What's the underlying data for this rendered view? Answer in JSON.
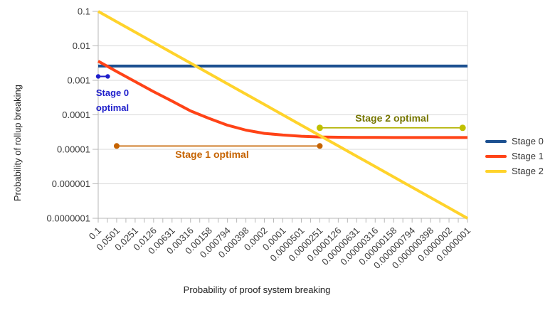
{
  "chart_data": {
    "type": "line",
    "title": "",
    "xlabel": "Probability of proof system breaking",
    "ylabel": "Probability of rollup breaking",
    "x_scale": "log",
    "y_scale": "log",
    "x_range": [
      0.1,
      1e-07
    ],
    "y_range": [
      0.1,
      1e-07
    ],
    "grid": "horizontal-only",
    "legend_position": "right",
    "x_values": [
      0.1,
      0.0501,
      0.0251,
      0.0126,
      0.00631,
      0.00316,
      0.00158,
      0.000794,
      0.000398,
      0.0002,
      0.0001,
      5.01e-05,
      2.51e-05,
      1.26e-05,
      6.31e-06,
      3.16e-06,
      1.58e-06,
      7.94e-07,
      3.98e-07,
      2e-07,
      1e-07
    ],
    "x_tick_labels": [
      "0.1",
      "0.0501",
      "0.0251",
      "0.0126",
      "0.00631",
      "0.00316",
      "0.00158",
      "0.000794",
      "0.000398",
      "0.0002",
      "0.0001",
      "0.0000501",
      "0.0000251",
      "0.0000126",
      "0.00000631",
      "0.00000316",
      "0.00000158",
      "0.000000794",
      "0.000000398",
      "0.0000002",
      "0.0000001"
    ],
    "y_tick_labels": [
      "0.1",
      "0.01",
      "0.001",
      "0.0001",
      "0.00001",
      "0.000001",
      "0.0000001"
    ],
    "series": [
      {
        "name": "Stage 0",
        "color": "#1c5090",
        "values": [
          0.0026,
          0.0026,
          0.0026,
          0.0026,
          0.0026,
          0.0026,
          0.0026,
          0.0026,
          0.0026,
          0.0026,
          0.0026,
          0.0026,
          0.0026,
          0.0026,
          0.0026,
          0.0026,
          0.0026,
          0.0026,
          0.0026,
          0.0026,
          0.0026
        ]
      },
      {
        "name": "Stage 1",
        "color": "#ff4317",
        "values": [
          0.0036,
          0.0018,
          0.00092,
          0.00047,
          0.00025,
          0.00013,
          7.9e-05,
          5e-05,
          3.6e-05,
          2.9e-05,
          2.6e-05,
          2.4e-05,
          2.28e-05,
          2.24e-05,
          2.22e-05,
          2.21e-05,
          2.2e-05,
          2.2e-05,
          2.2e-05,
          2.2e-05,
          2.2e-05
        ]
      },
      {
        "name": "Stage 2",
        "color": "#ffd32b",
        "values": [
          0.1,
          0.0501,
          0.0251,
          0.0126,
          0.00631,
          0.00316,
          0.00158,
          0.000794,
          0.000398,
          0.0002,
          0.0001,
          5.01e-05,
          2.51e-05,
          1.26e-05,
          6.31e-06,
          3.16e-06,
          1.58e-06,
          7.94e-07,
          3.98e-07,
          2e-07,
          1e-07
        ]
      }
    ],
    "annotations": [
      {
        "id": "stage0-optimal",
        "label": "Stage 0 optimal",
        "x_start": 0.1,
        "x_end": 0.07,
        "y": 0.0013,
        "line_color": "#1e1ecb",
        "marker_color": "#1e1ecb",
        "text_color": "#1e1ecb"
      },
      {
        "id": "stage1-optimal",
        "label": "Stage 1 optimal",
        "x_start": 0.0501,
        "x_end": 2.51e-05,
        "y": 1.25e-05,
        "line_color": "#c66300",
        "marker_color": "#c66300",
        "text_color": "#c66300"
      },
      {
        "id": "stage2-optimal",
        "label": "Stage 2 optimal",
        "x_start": 2.51e-05,
        "x_end": 1.2e-07,
        "y": 4.2e-05,
        "line_color": "#b2b200",
        "marker_color": "#c0c000",
        "text_color": "#767600"
      }
    ]
  },
  "annotations_text": {
    "stage0_line1": "Stage 0",
    "stage0_line2": "optimal",
    "stage1": "Stage 1 optimal",
    "stage2": "Stage 2 optimal"
  },
  "legend": {
    "items": [
      {
        "label": "Stage 0",
        "color": "#1c5090"
      },
      {
        "label": "Stage 1",
        "color": "#ff4317"
      },
      {
        "label": "Stage 2",
        "color": "#ffd32b"
      }
    ]
  },
  "style_colors": {
    "gridline": "#d9d9d9",
    "axis": "#b7b7b7",
    "tick_label": "#3b3b3b"
  }
}
